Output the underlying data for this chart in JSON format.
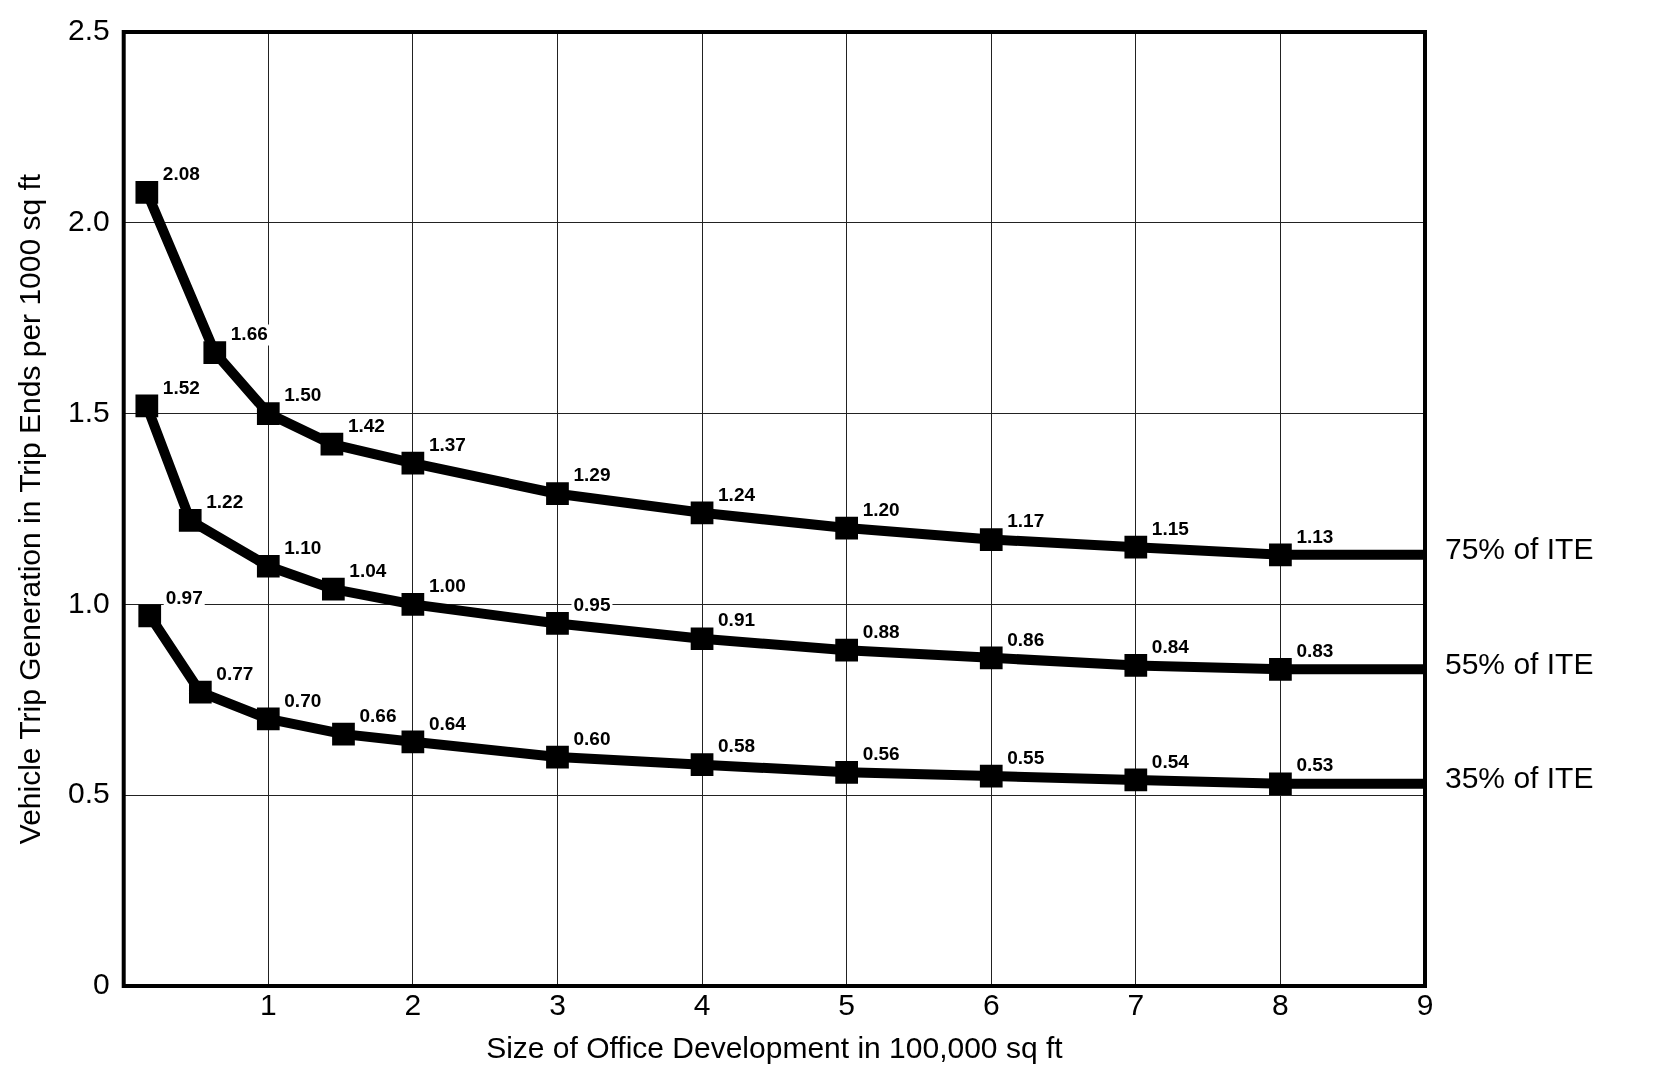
{
  "chart_data": {
    "type": "line",
    "xlabel": "Size of Office Development in 100,000 sq ft",
    "ylabel": "Vehicle Trip Generation in Trip Ends per 1000 sq ft",
    "xlim": [
      0,
      9
    ],
    "xticks": [
      {
        "value": 0,
        "label": null
      },
      1,
      2,
      3,
      4,
      5,
      6,
      7,
      8,
      9
    ],
    "ylim": [
      0,
      2.5
    ],
    "yticks": [
      0,
      0.5,
      {
        "value": 1,
        "label": "1.0"
      },
      1.5,
      {
        "value": 2,
        "label": "2.0"
      },
      2.5
    ],
    "grid": true,
    "legend": false,
    "marker": "square",
    "line_style": "solid",
    "series": [
      {
        "name": "75% of ITE",
        "color": "#000000",
        "x": [
          0.16,
          0.63,
          1,
          1.44,
          2,
          3,
          4,
          5,
          6,
          7,
          8,
          9
        ],
        "values": [
          2.08,
          1.66,
          1.5,
          1.42,
          1.37,
          1.29,
          1.24,
          1.2,
          1.17,
          1.15,
          1.13,
          1.13
        ],
        "value_labels": [
          "2.08",
          "1.66",
          "1.50",
          "1.42",
          "1.37",
          "1.29",
          "1.24",
          "1.20",
          "1.17",
          "1.15",
          "1.13",
          null
        ]
      },
      {
        "name": "55% of ITE",
        "color": "#000000",
        "x": [
          0.16,
          0.46,
          1,
          1.45,
          2,
          3,
          4,
          5,
          6,
          7,
          8,
          9
        ],
        "values": [
          1.52,
          1.22,
          1.1,
          1.04,
          1.0,
          0.95,
          0.91,
          0.88,
          0.86,
          0.84,
          0.83,
          0.83
        ],
        "value_labels": [
          "1.52",
          "1.22",
          "1.10",
          "1.04",
          "1.00",
          "0.95",
          "0.91",
          "0.88",
          "0.86",
          "0.84",
          "0.83",
          null
        ]
      },
      {
        "name": "35% of ITE",
        "color": "#000000",
        "x": [
          0.18,
          0.53,
          1,
          1.52,
          2,
          3,
          4,
          5,
          6,
          7,
          8,
          9
        ],
        "values": [
          0.97,
          0.77,
          0.7,
          0.66,
          0.64,
          0.6,
          0.58,
          0.56,
          0.55,
          0.54,
          0.53,
          0.53
        ],
        "value_labels": [
          "0.97",
          "0.77",
          "0.70",
          "0.66",
          "0.64",
          "0.60",
          "0.58",
          "0.56",
          "0.55",
          "0.54",
          "0.53",
          null
        ]
      }
    ]
  }
}
